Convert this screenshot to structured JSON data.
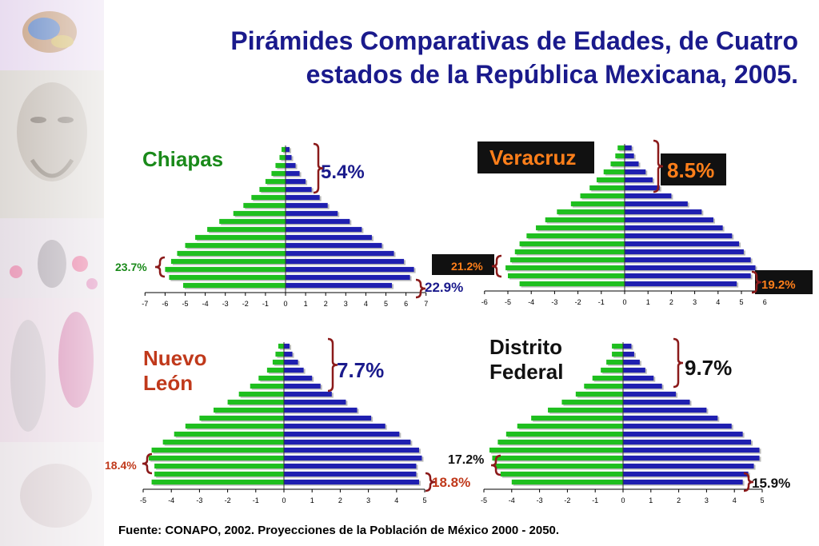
{
  "title": "Pirámides Comparativas de Edades, de Cuatro estados de la República Mexicana, 2005.",
  "title_lines": [
    "Pirámides Comparativas de Edades, de Cuatro",
    "estados de la República Mexicana, 2005."
  ],
  "source": "Fuente: CONAPO, 2002. Proyecciones de la Población de México 2000 - 2050.",
  "colors": {
    "title": "#1a1a8c",
    "male": "#1fbf1f",
    "female": "#1f1fb0",
    "brace": "#8b1a1a",
    "chiapas_label": "#1a8a1a",
    "nuevo_leon_label": "#c0391b"
  },
  "chart_data": [
    {
      "type": "bar",
      "orientation": "horizontal-population-pyramid",
      "panel_label": "Chiapas",
      "x_ticks": [
        "-7",
        "-6",
        "-5",
        "-4",
        "-3",
        "-2",
        "-1",
        "0",
        "1",
        "2",
        "3",
        "4",
        "5",
        "6",
        "7"
      ],
      "xlim": [
        -7,
        7
      ],
      "annotations": {
        "top": "5.4%",
        "bottom_left": "23.7%",
        "bottom_right": "22.9%"
      },
      "series": [
        {
          "color": "male",
          "values": [
            -5.1,
            -5.8,
            -6.0,
            -5.7,
            -5.4,
            -5.0,
            -4.5,
            -3.9,
            -3.3,
            -2.6,
            -2.1,
            -1.7,
            -1.3,
            -1.0,
            -0.7,
            -0.5,
            -0.3,
            -0.2
          ]
        },
        {
          "color": "female",
          "values": [
            5.3,
            6.2,
            6.4,
            5.9,
            5.4,
            4.8,
            4.3,
            3.8,
            3.2,
            2.6,
            2.1,
            1.7,
            1.3,
            1.0,
            0.7,
            0.5,
            0.3,
            0.2
          ]
        }
      ]
    },
    {
      "type": "bar",
      "orientation": "horizontal-population-pyramid",
      "panel_label": "Veracruz",
      "x_ticks": [
        "-6",
        "-5",
        "-4",
        "-3",
        "-2",
        "-1",
        "0",
        "1",
        "2",
        "3",
        "4",
        "5",
        "6"
      ],
      "xlim": [
        -6,
        6
      ],
      "annotations": {
        "top": "8.5%",
        "bottom_left": "21.2%",
        "bottom_right": "19.2%"
      },
      "series": [
        {
          "color": "male",
          "values": [
            -4.5,
            -5.0,
            -5.1,
            -4.9,
            -4.7,
            -4.5,
            -4.2,
            -3.8,
            -3.4,
            -2.9,
            -2.3,
            -1.9,
            -1.5,
            -1.2,
            -0.9,
            -0.6,
            -0.4,
            -0.3
          ]
        },
        {
          "color": "female",
          "values": [
            4.8,
            5.4,
            5.6,
            5.4,
            5.1,
            4.9,
            4.6,
            4.2,
            3.8,
            3.3,
            2.7,
            2.0,
            1.5,
            1.2,
            0.9,
            0.6,
            0.4,
            0.3
          ]
        }
      ]
    },
    {
      "type": "bar",
      "orientation": "horizontal-population-pyramid",
      "panel_label": "Nuevo León",
      "panel_label_lines": [
        "Nuevo",
        "León"
      ],
      "x_ticks": [
        "-5",
        "-4",
        "-3",
        "-2",
        "-1",
        "0",
        "1",
        "2",
        "3",
        "4",
        "5"
      ],
      "xlim": [
        -5,
        5
      ],
      "annotations": {
        "top": "7.7%",
        "bottom_left": "18.4%",
        "bottom_right": "18.8%"
      },
      "series": [
        {
          "color": "male",
          "values": [
            -4.7,
            -4.6,
            -4.6,
            -4.8,
            -4.7,
            -4.3,
            -3.9,
            -3.5,
            -3.0,
            -2.5,
            -2.0,
            -1.6,
            -1.2,
            -0.9,
            -0.6,
            -0.4,
            -0.3,
            -0.2
          ]
        },
        {
          "color": "female",
          "values": [
            4.8,
            4.7,
            4.7,
            4.9,
            4.8,
            4.5,
            4.1,
            3.6,
            3.1,
            2.6,
            2.2,
            1.7,
            1.3,
            1.0,
            0.7,
            0.5,
            0.3,
            0.2
          ]
        }
      ]
    },
    {
      "type": "bar",
      "orientation": "horizontal-population-pyramid",
      "panel_label": "Distrito Federal",
      "panel_label_lines": [
        "Distrito",
        "Federal"
      ],
      "x_ticks": [
        "-5",
        "-4",
        "-3",
        "-2",
        "-1",
        "0",
        "1",
        "2",
        "3",
        "4",
        "5"
      ],
      "xlim": [
        -5,
        5
      ],
      "annotations": {
        "top": "9.7%",
        "bottom_left": "17.2%",
        "bottom_right": "15.9%"
      },
      "series": [
        {
          "color": "male",
          "values": [
            -4.0,
            -4.4,
            -4.6,
            -4.7,
            -4.8,
            -4.5,
            -4.2,
            -3.8,
            -3.3,
            -2.7,
            -2.2,
            -1.7,
            -1.4,
            -1.1,
            -0.8,
            -0.6,
            -0.4,
            -0.4
          ]
        },
        {
          "color": "female",
          "values": [
            4.3,
            4.5,
            4.7,
            4.9,
            4.9,
            4.6,
            4.3,
            3.9,
            3.4,
            3.0,
            2.4,
            1.9,
            1.4,
            1.1,
            0.8,
            0.6,
            0.4,
            0.3
          ]
        }
      ]
    }
  ]
}
